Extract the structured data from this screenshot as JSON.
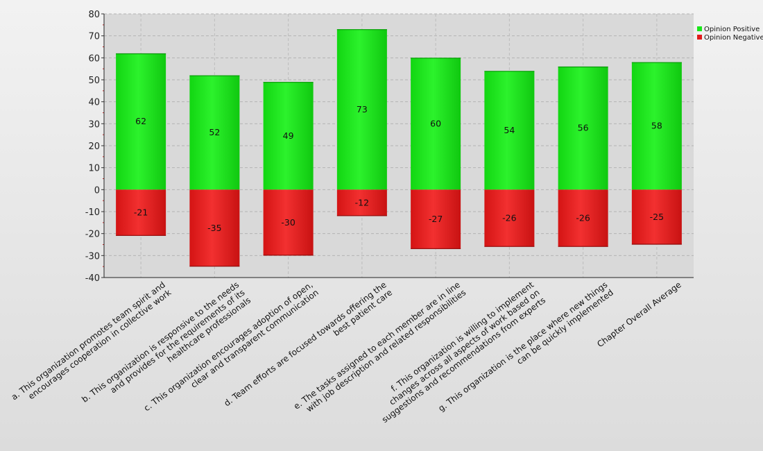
{
  "chart_data": {
    "type": "bar",
    "stacked": true,
    "categories": [
      [
        "a. This organization promotes team spirit and",
        "encourages cooperation in collective work"
      ],
      [
        "b. This organization is responsive to the needs",
        "and provides for the requirements of its",
        "healthcare professionals"
      ],
      [
        "c. This organization encourages adoption of open,",
        "clear and transparent communication"
      ],
      [
        "d. Team efforts are focused towards offering the",
        "best patient care"
      ],
      [
        "e. The tasks assigned to each member are in line",
        "with job description and related responsibilities"
      ],
      [
        "f. This organization is willing to implement",
        "changes across all aspects of work based on",
        "suggestions and recommendations from experts"
      ],
      [
        "g. This organization is the place where new things",
        "can be quickly implemented"
      ],
      [
        "Chapter Overall Average"
      ]
    ],
    "series": [
      {
        "name": "Opinion Positive",
        "color": "#19e619",
        "values": [
          62,
          52,
          49,
          73,
          60,
          54,
          56,
          58
        ]
      },
      {
        "name": "Opinion Negative",
        "color": "#e11b1b",
        "values": [
          -21,
          -35,
          -30,
          -12,
          -27,
          -26,
          -26,
          -25
        ]
      }
    ],
    "ylim": [
      -40,
      80
    ],
    "yticks": [
      80,
      70,
      60,
      50,
      40,
      30,
      20,
      10,
      0,
      -10,
      -20,
      -30,
      -40
    ],
    "grid": true,
    "legend": "top-right",
    "xlabel": "",
    "ylabel": "",
    "title": ""
  }
}
